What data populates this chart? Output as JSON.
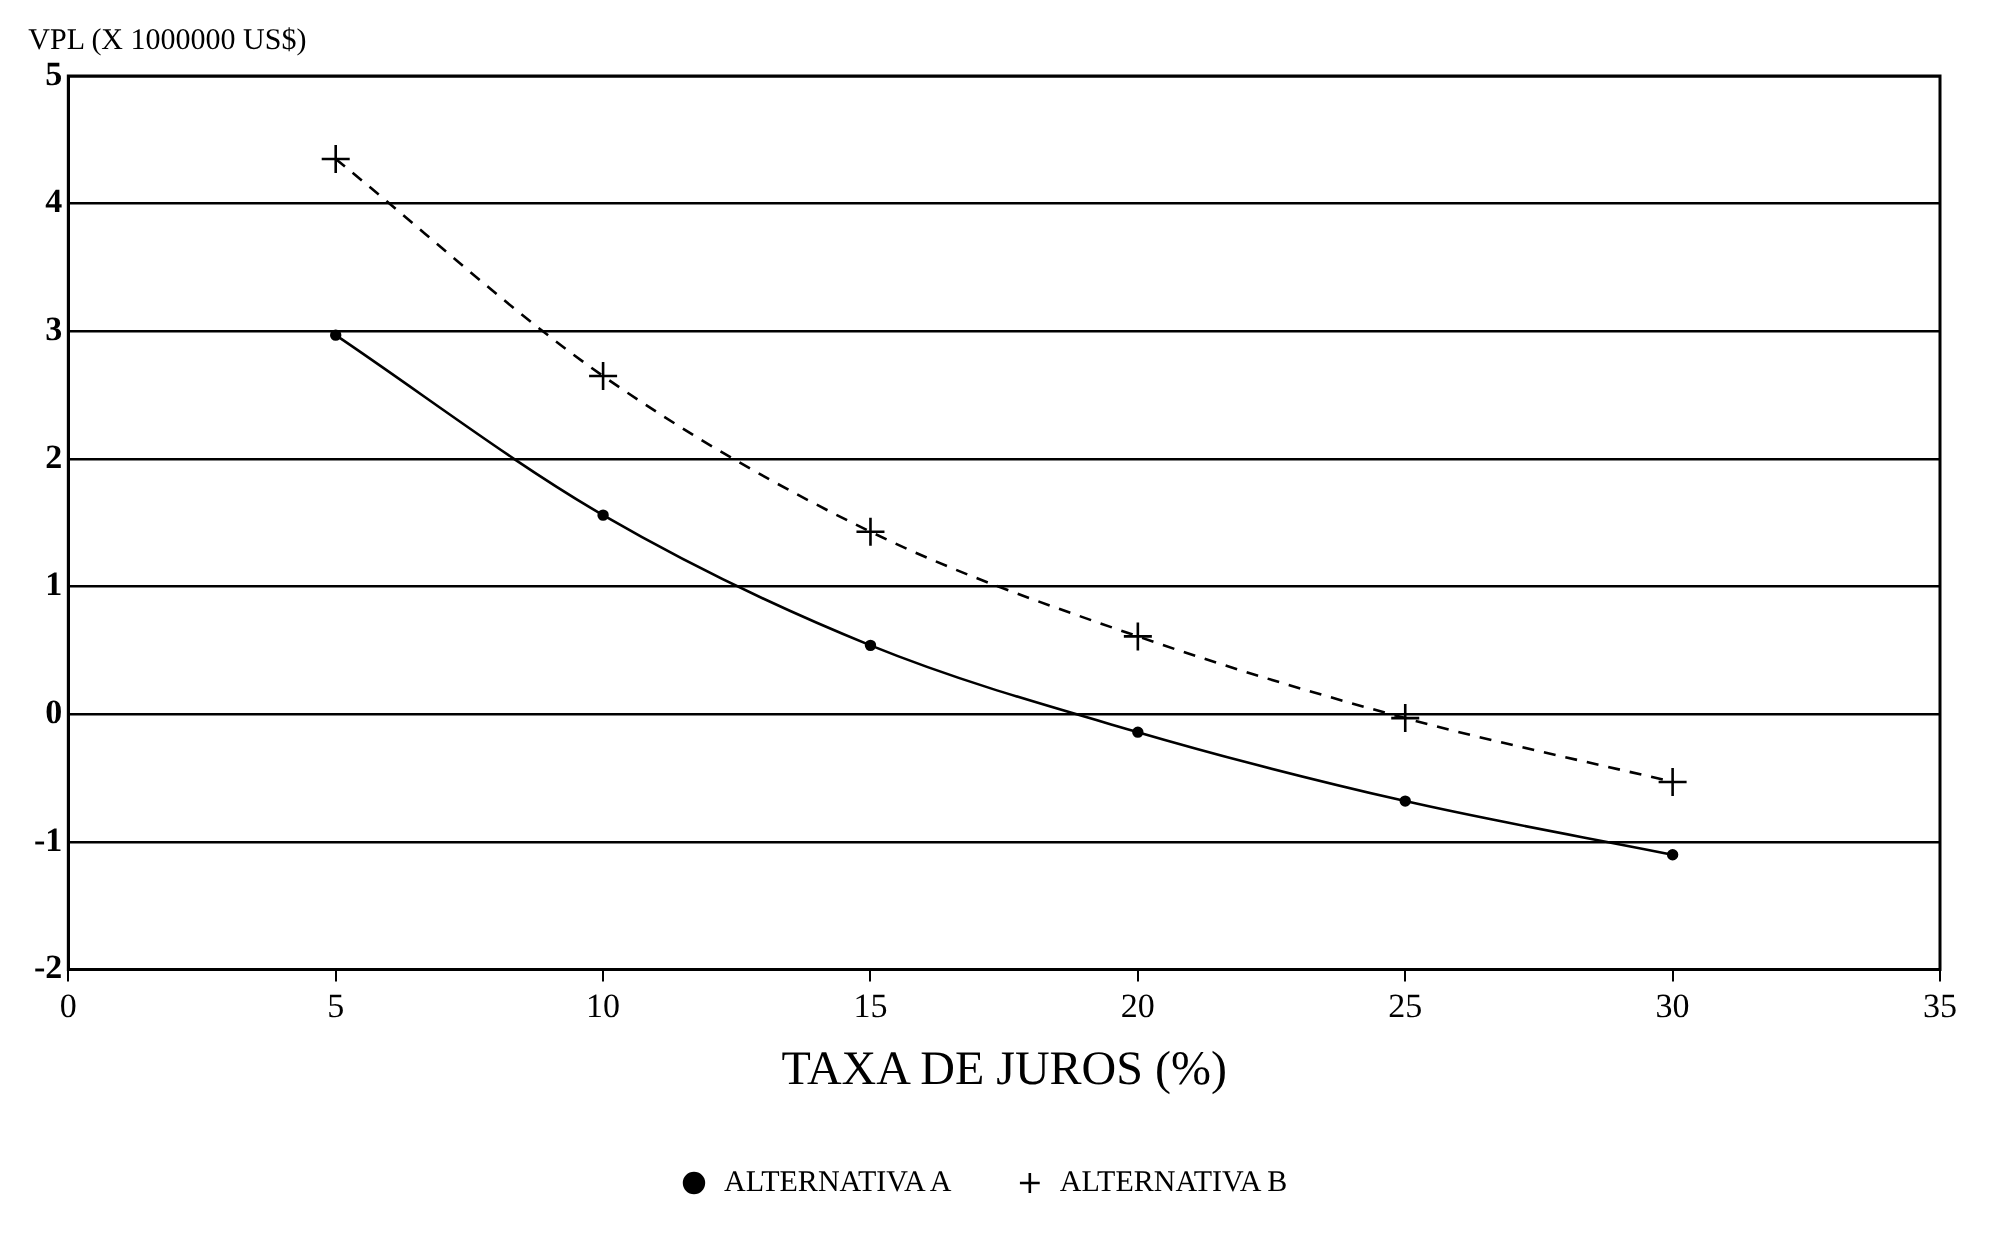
{
  "chart_data": {
    "type": "line",
    "ylabel": "VPL (X 1000000 US$)",
    "xlabel": "TAXA DE JUROS (%)",
    "x": [
      5,
      10,
      15,
      20,
      25,
      30
    ],
    "series": [
      {
        "name": "ALTERNATIVA A",
        "color": "#000000",
        "marker": "circle",
        "line_style": "solid",
        "values": [
          2.97,
          1.56,
          0.54,
          -0.14,
          -0.68,
          -1.1
        ]
      },
      {
        "name": "ALTERNATIVA B",
        "color": "#000000",
        "marker": "cross",
        "line_style": "dashed",
        "values": [
          4.35,
          2.65,
          1.43,
          0.61,
          -0.03,
          -0.53
        ]
      }
    ],
    "xlim": [
      0,
      35
    ],
    "xticks": [
      0,
      5,
      10,
      15,
      20,
      25,
      30,
      35
    ],
    "ylim": [
      -2,
      5
    ],
    "yticks": [
      -2,
      -1,
      0,
      1,
      2,
      3,
      4,
      5
    ],
    "grid": "y",
    "legend": "bottom"
  }
}
